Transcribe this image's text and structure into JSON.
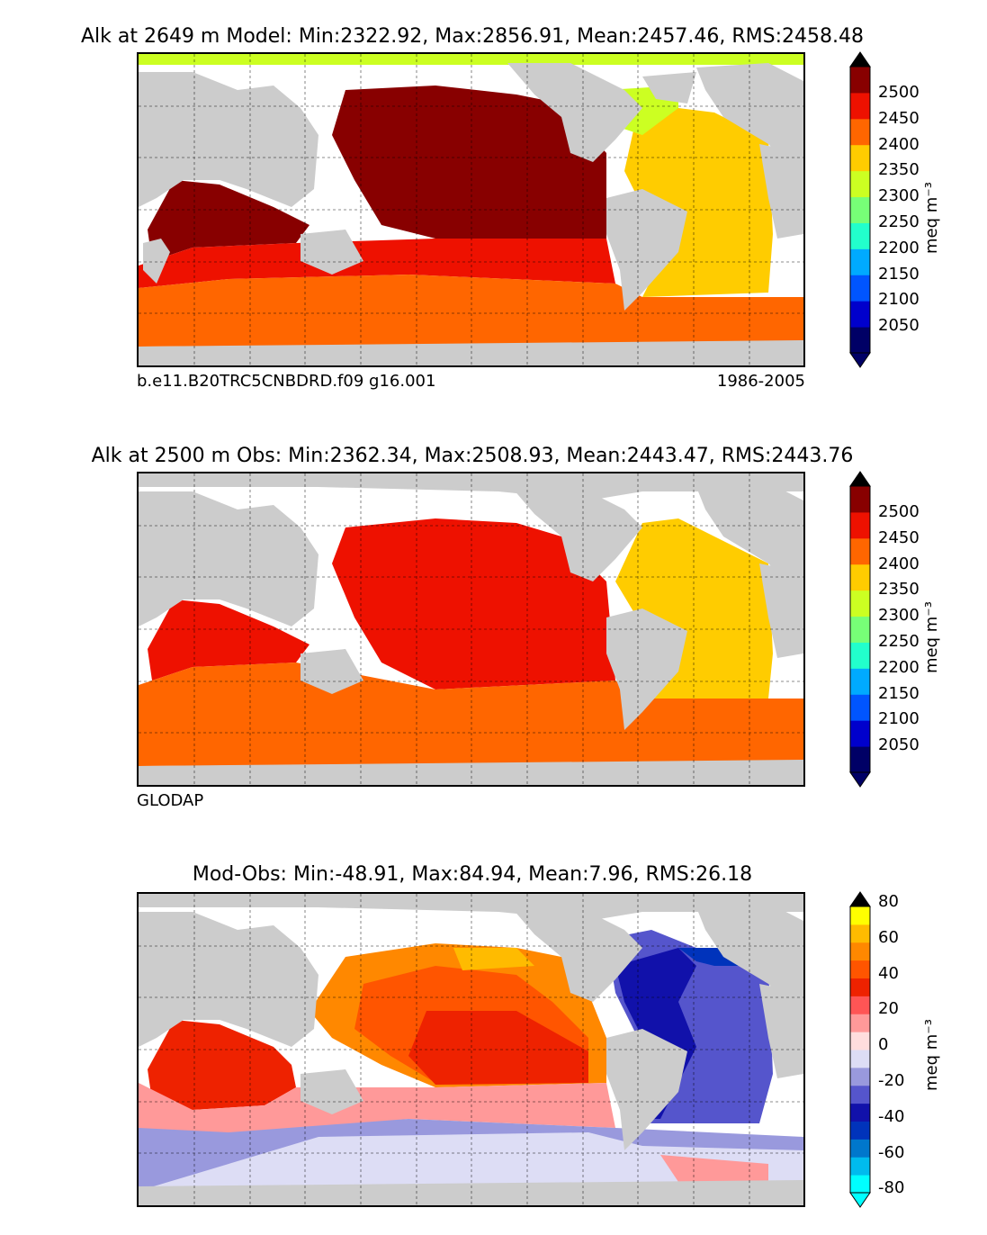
{
  "panels": [
    {
      "title": "Alk at 2649 m Model: Min:2322.92, Max:2856.91, Mean:2457.46, RMS:2458.48",
      "caption_left": "b.e11.B20TRC5CNBDRD.f09 g16.001",
      "caption_right": "1986-2005",
      "colorbar": {
        "unit": "meq m⁻³",
        "labels": [
          "2500",
          "2450",
          "2400",
          "2350",
          "2300",
          "2250",
          "2200",
          "2150",
          "2100",
          "2050"
        ],
        "colors": [
          "#000066",
          "#0000cc",
          "#0055ff",
          "#00aaff",
          "#22ffcc",
          "#77ff77",
          "#ccff22",
          "#ffcc00",
          "#ff6600",
          "#ee1100",
          "#880000"
        ]
      }
    },
    {
      "title": "Alk at 2500 m Obs: Min:2362.34, Max:2508.93, Mean:2443.47, RMS:2443.76",
      "caption_left": "GLODAP",
      "colorbar": {
        "unit": "meq m⁻³",
        "labels": [
          "2500",
          "2450",
          "2400",
          "2350",
          "2300",
          "2250",
          "2200",
          "2150",
          "2100",
          "2050"
        ],
        "colors": [
          "#000066",
          "#0000cc",
          "#0055ff",
          "#00aaff",
          "#22ffcc",
          "#77ff77",
          "#ccff22",
          "#ffcc00",
          "#ff6600",
          "#ee1100",
          "#880000"
        ]
      }
    },
    {
      "title": "Mod-Obs: Min:-48.91, Max:84.94, Mean:7.96, RMS:26.18",
      "colorbar": {
        "unit": "meq m⁻³",
        "labels": [
          "80",
          "60",
          "40",
          "20",
          "0",
          "-20",
          "-40",
          "-60",
          "-80"
        ],
        "colors": [
          "#00ffff",
          "#00bbee",
          "#0077cc",
          "#0033bb",
          "#1111aa",
          "#5555cc",
          "#9999dd",
          "#ddddf5",
          "#ffdddd",
          "#ff9999",
          "#ff5555",
          "#ee2200",
          "#ff5500",
          "#ff8800",
          "#ffbb00",
          "#ffff00"
        ]
      }
    }
  ],
  "field_colors": {
    "land": "#cccccc",
    "no_data": "#ffffff"
  }
}
